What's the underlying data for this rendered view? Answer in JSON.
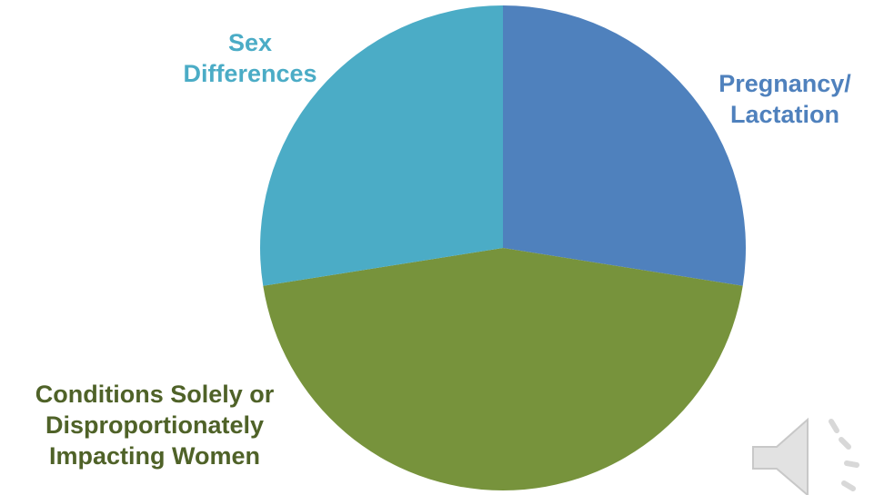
{
  "chart_data": {
    "type": "pie",
    "start_angle_deg": 0,
    "direction": "clockwise",
    "slices": [
      {
        "label_lines": [
          "Pregnancy/",
          "Lactation"
        ],
        "value": 27.5,
        "color": "#4f81bd",
        "label_color": "#4f81bd"
      },
      {
        "label_lines": [
          "Conditions Solely or",
          "Disproportionately",
          "Impacting Women"
        ],
        "value": 45,
        "color": "#77933c",
        "label_color": "#4f6228"
      },
      {
        "label_lines": [
          "Sex",
          "Differences"
        ],
        "value": 27.5,
        "color": "#4bacc6",
        "label_color": "#4bacc6"
      }
    ],
    "legend": "none"
  },
  "icons": {
    "audio": "speaker-icon"
  }
}
